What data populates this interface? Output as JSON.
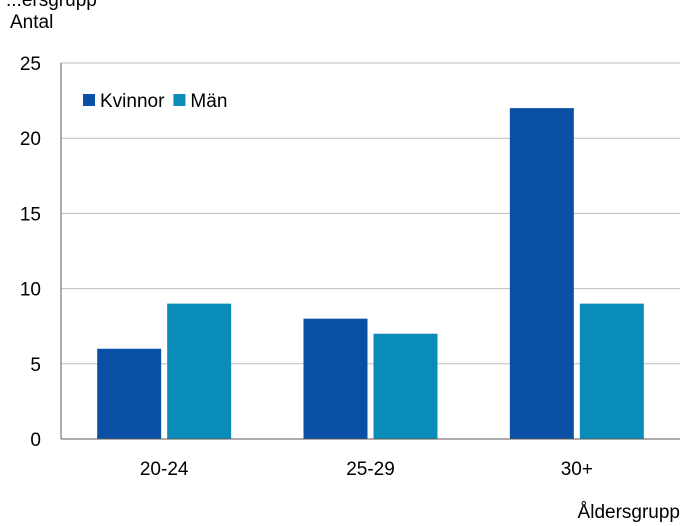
{
  "chart_data": {
    "type": "bar",
    "title": "...ersgrupp",
    "ylabel": "Antal",
    "xlabel": "Åldersgrupp",
    "categories": [
      "20-24",
      "25-29",
      "30+"
    ],
    "series": [
      {
        "name": "Kvinnor",
        "values": [
          6,
          8,
          22
        ],
        "color": "#0A4FA6"
      },
      {
        "name": "Män",
        "values": [
          9,
          7,
          9
        ],
        "color": "#0A8CB8"
      }
    ],
    "ylim": [
      0,
      25
    ],
    "yticks": [
      0,
      5,
      10,
      15,
      20,
      25
    ],
    "grid": true,
    "legend_position": "top-left"
  }
}
